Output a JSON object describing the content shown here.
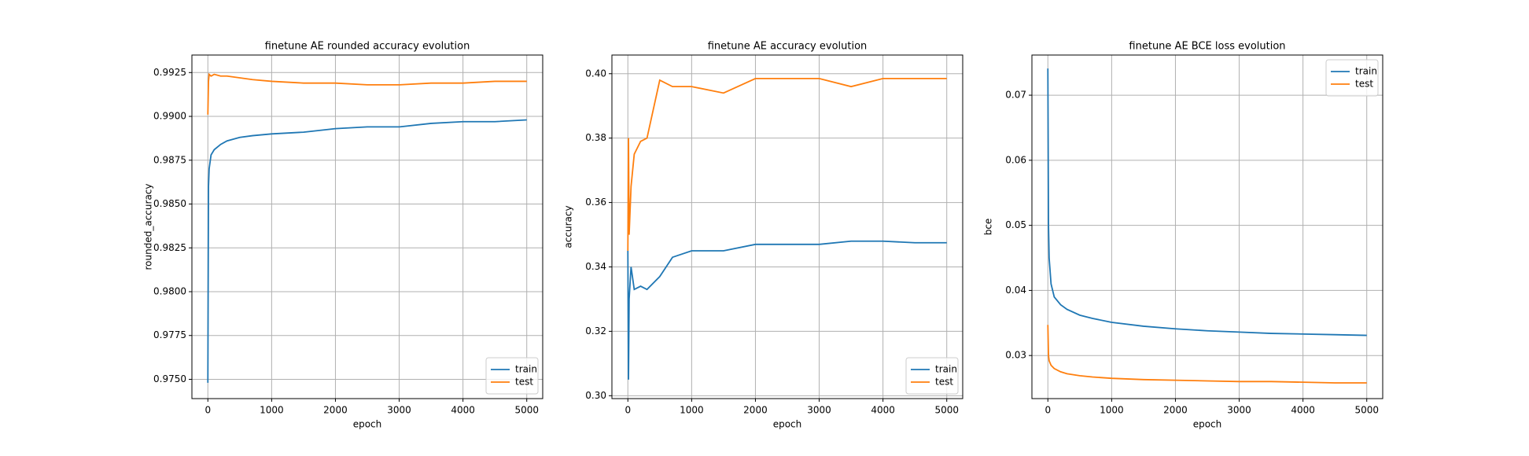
{
  "chart_data": [
    {
      "type": "line",
      "title": "finetune AE rounded accuracy evolution",
      "x_label": "epoch",
      "y_label": "rounded_accuracy",
      "x": [
        0,
        10,
        20,
        50,
        100,
        200,
        300,
        500,
        700,
        1000,
        1500,
        2000,
        2500,
        3000,
        3500,
        4000,
        4500,
        5000
      ],
      "series": [
        {
          "name": "train",
          "color": "#1f77b4",
          "values": [
            0.9748,
            0.986,
            0.987,
            0.9878,
            0.9881,
            0.9884,
            0.9886,
            0.9888,
            0.9889,
            0.989,
            0.9891,
            0.9893,
            0.9894,
            0.9894,
            0.9896,
            0.9897,
            0.9897,
            0.9898
          ]
        },
        {
          "name": "test",
          "color": "#ff7f0e",
          "values": [
            0.9901,
            0.992,
            0.9924,
            0.9923,
            0.9924,
            0.9923,
            0.9923,
            0.9922,
            0.9921,
            0.992,
            0.9919,
            0.9919,
            0.9918,
            0.9918,
            0.9919,
            0.9919,
            0.992,
            0.992
          ]
        }
      ],
      "xlim": [
        -250,
        5250
      ],
      "xticks": [
        0,
        1000,
        2000,
        3000,
        4000,
        5000
      ],
      "ylim": [
        0.9739,
        0.9935
      ],
      "yticks": [
        {
          "value": 0.975,
          "label": "0.9750"
        },
        {
          "value": 0.9775,
          "label": "0.9775"
        },
        {
          "value": 0.98,
          "label": "0.9800"
        },
        {
          "value": 0.9825,
          "label": "0.9825"
        },
        {
          "value": 0.985,
          "label": "0.9850"
        },
        {
          "value": 0.9875,
          "label": "0.9875"
        },
        {
          "value": 0.99,
          "label": "0.9900"
        },
        {
          "value": 0.9925,
          "label": "0.9925"
        }
      ],
      "grid": true,
      "legend": "lower right"
    },
    {
      "type": "line",
      "title": "finetune AE accuracy evolution",
      "x_label": "epoch",
      "y_label": "accuracy",
      "x": [
        0,
        10,
        20,
        50,
        100,
        200,
        300,
        500,
        700,
        1000,
        1500,
        2000,
        2500,
        3000,
        3500,
        4000,
        4500,
        5000
      ],
      "series": [
        {
          "name": "train",
          "color": "#1f77b4",
          "values": [
            0.345,
            0.305,
            0.33,
            0.34,
            0.333,
            0.334,
            0.333,
            0.337,
            0.343,
            0.345,
            0.345,
            0.347,
            0.347,
            0.347,
            0.348,
            0.348,
            0.3475,
            0.3475
          ]
        },
        {
          "name": "test",
          "color": "#ff7f0e",
          "values": [
            0.345,
            0.38,
            0.35,
            0.365,
            0.375,
            0.379,
            0.38,
            0.398,
            0.396,
            0.396,
            0.394,
            0.3985,
            0.3985,
            0.3985,
            0.396,
            0.3985,
            0.3985,
            0.3985
          ]
        }
      ],
      "xlim": [
        -250,
        5250
      ],
      "xticks": [
        0,
        1000,
        2000,
        3000,
        4000,
        5000
      ],
      "ylim": [
        0.2991,
        0.4058
      ],
      "yticks": [
        {
          "value": 0.3,
          "label": "0.30"
        },
        0.32,
        0.34,
        0.36,
        0.38,
        {
          "value": 0.4,
          "label": "0.40"
        }
      ],
      "grid": true,
      "legend": "lower right"
    },
    {
      "type": "line",
      "title": "finetune AE BCE loss evolution",
      "x_label": "epoch",
      "y_label": "bce",
      "x": [
        0,
        10,
        20,
        50,
        100,
        200,
        300,
        500,
        700,
        1000,
        1500,
        2000,
        2500,
        3000,
        3500,
        4000,
        4500,
        5000
      ],
      "series": [
        {
          "name": "train",
          "color": "#1f77b4",
          "values": [
            0.0741,
            0.05,
            0.045,
            0.041,
            0.039,
            0.0378,
            0.0371,
            0.0362,
            0.0357,
            0.0351,
            0.0345,
            0.0341,
            0.0338,
            0.0336,
            0.0334,
            0.0333,
            0.0332,
            0.0331
          ]
        },
        {
          "name": "test",
          "color": "#ff7f0e",
          "values": [
            0.0347,
            0.03,
            0.0292,
            0.0285,
            0.028,
            0.0275,
            0.0272,
            0.0269,
            0.0267,
            0.0265,
            0.0263,
            0.0262,
            0.0261,
            0.026,
            0.026,
            0.0259,
            0.0258,
            0.0258
          ]
        }
      ],
      "xlim": [
        -250,
        5250
      ],
      "xticks": [
        0,
        1000,
        2000,
        3000,
        4000,
        5000
      ],
      "ylim": [
        0.02338,
        0.07617
      ],
      "yticks": [
        0.03,
        0.04,
        0.05,
        0.06,
        0.07
      ],
      "grid": true,
      "legend": "upper right"
    }
  ]
}
